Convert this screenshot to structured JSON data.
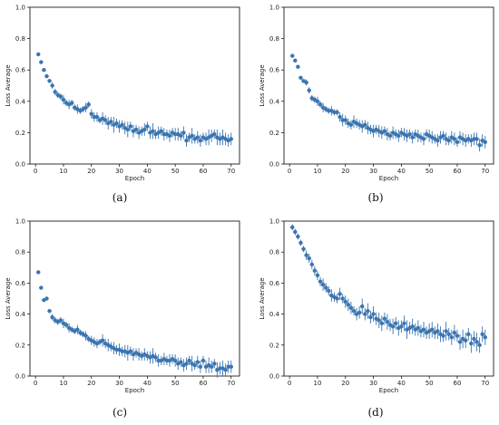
{
  "figure": {
    "marker_color": "#3a75b0",
    "errorbar_color": "#3a75b0"
  },
  "chart_data": [
    {
      "type": "scatter",
      "caption": "(a)",
      "xlabel": "Epoch",
      "ylabel": "Loss Average",
      "xlim": [
        -2,
        73
      ],
      "ylim": [
        0,
        1.0
      ],
      "xticks": [
        "0",
        "10",
        "20",
        "30",
        "40",
        "50",
        "60",
        "70"
      ],
      "yticks": [
        "0.0",
        "0.2",
        "0.4",
        "0.6",
        "0.8",
        "1.0"
      ],
      "grid": false,
      "series": [
        {
          "x": [
            1,
            2,
            3,
            4,
            5,
            6,
            7,
            8,
            9,
            10,
            11,
            12,
            13,
            14,
            15,
            16,
            17,
            18,
            19,
            20,
            21,
            22,
            23,
            24,
            25,
            26,
            27,
            28,
            29,
            30,
            31,
            32,
            33,
            34,
            35,
            36,
            37,
            38,
            39,
            40,
            41,
            42,
            43,
            44,
            45,
            46,
            47,
            48,
            49,
            50,
            51,
            52,
            53,
            54,
            55,
            56,
            57,
            58,
            59,
            60,
            61,
            62,
            63,
            64,
            65,
            66,
            67,
            68,
            69,
            70
          ],
          "y": [
            0.7,
            0.65,
            0.6,
            0.56,
            0.53,
            0.5,
            0.46,
            0.44,
            0.43,
            0.41,
            0.39,
            0.38,
            0.39,
            0.36,
            0.35,
            0.34,
            0.35,
            0.36,
            0.38,
            0.32,
            0.3,
            0.3,
            0.28,
            0.29,
            0.28,
            0.26,
            0.27,
            0.25,
            0.26,
            0.24,
            0.25,
            0.23,
            0.22,
            0.24,
            0.21,
            0.22,
            0.2,
            0.21,
            0.22,
            0.24,
            0.2,
            0.21,
            0.19,
            0.2,
            0.21,
            0.19,
            0.19,
            0.18,
            0.2,
            0.19,
            0.19,
            0.18,
            0.2,
            0.15,
            0.17,
            0.18,
            0.16,
            0.17,
            0.15,
            0.17,
            0.16,
            0.17,
            0.18,
            0.19,
            0.17,
            0.16,
            0.17,
            0.16,
            0.15,
            0.16
          ],
          "err": [
            0.01,
            0.01,
            0.01,
            0.01,
            0.01,
            0.02,
            0.02,
            0.02,
            0.02,
            0.03,
            0.02,
            0.03,
            0.02,
            0.02,
            0.03,
            0.02,
            0.02,
            0.03,
            0.02,
            0.03,
            0.03,
            0.03,
            0.02,
            0.04,
            0.03,
            0.04,
            0.03,
            0.05,
            0.03,
            0.04,
            0.03,
            0.04,
            0.05,
            0.03,
            0.04,
            0.03,
            0.04,
            0.03,
            0.04,
            0.03,
            0.04,
            0.05,
            0.03,
            0.04,
            0.03,
            0.04,
            0.03,
            0.04,
            0.03,
            0.04,
            0.04,
            0.03,
            0.04,
            0.04,
            0.03,
            0.05,
            0.03,
            0.04,
            0.04,
            0.03,
            0.04,
            0.05,
            0.04,
            0.03,
            0.05,
            0.04,
            0.05,
            0.04,
            0.04,
            0.04
          ]
        }
      ]
    },
    {
      "type": "scatter",
      "caption": "(b)",
      "xlabel": "Epoch",
      "ylabel": "Loss Average",
      "xlim": [
        -2,
        73
      ],
      "ylim": [
        0,
        1.0
      ],
      "xticks": [
        "0",
        "10",
        "20",
        "30",
        "40",
        "50",
        "60",
        "70"
      ],
      "yticks": [
        "0.0",
        "0.2",
        "0.4",
        "0.6",
        "0.8",
        "1.0"
      ],
      "grid": false,
      "series": [
        {
          "x": [
            1,
            2,
            3,
            4,
            5,
            6,
            7,
            8,
            9,
            10,
            11,
            12,
            13,
            14,
            15,
            16,
            17,
            18,
            19,
            20,
            21,
            22,
            23,
            24,
            25,
            26,
            27,
            28,
            29,
            30,
            31,
            32,
            33,
            34,
            35,
            36,
            37,
            38,
            39,
            40,
            41,
            42,
            43,
            44,
            45,
            46,
            47,
            48,
            49,
            50,
            51,
            52,
            53,
            54,
            55,
            56,
            57,
            58,
            59,
            60,
            61,
            62,
            63,
            64,
            65,
            66,
            67,
            68,
            69,
            70
          ],
          "y": [
            0.69,
            0.66,
            0.62,
            0.55,
            0.53,
            0.52,
            0.47,
            0.42,
            0.41,
            0.4,
            0.38,
            0.36,
            0.35,
            0.34,
            0.34,
            0.33,
            0.33,
            0.3,
            0.28,
            0.28,
            0.26,
            0.25,
            0.27,
            0.26,
            0.25,
            0.24,
            0.25,
            0.23,
            0.22,
            0.21,
            0.22,
            0.21,
            0.2,
            0.21,
            0.19,
            0.18,
            0.2,
            0.19,
            0.18,
            0.2,
            0.19,
            0.18,
            0.19,
            0.17,
            0.19,
            0.18,
            0.17,
            0.16,
            0.19,
            0.18,
            0.17,
            0.16,
            0.15,
            0.17,
            0.18,
            0.16,
            0.15,
            0.17,
            0.16,
            0.14,
            0.17,
            0.16,
            0.15,
            0.16,
            0.15,
            0.16,
            0.16,
            0.12,
            0.15,
            0.14
          ],
          "err": [
            0.01,
            0.01,
            0.01,
            0.01,
            0.01,
            0.02,
            0.02,
            0.02,
            0.02,
            0.03,
            0.02,
            0.03,
            0.02,
            0.02,
            0.03,
            0.02,
            0.02,
            0.03,
            0.04,
            0.03,
            0.03,
            0.03,
            0.04,
            0.03,
            0.03,
            0.04,
            0.03,
            0.04,
            0.03,
            0.04,
            0.03,
            0.04,
            0.04,
            0.03,
            0.04,
            0.03,
            0.04,
            0.03,
            0.04,
            0.03,
            0.04,
            0.04,
            0.03,
            0.04,
            0.03,
            0.04,
            0.03,
            0.04,
            0.03,
            0.04,
            0.04,
            0.03,
            0.04,
            0.04,
            0.03,
            0.04,
            0.03,
            0.04,
            0.04,
            0.03,
            0.04,
            0.04,
            0.04,
            0.03,
            0.04,
            0.04,
            0.04,
            0.04,
            0.04,
            0.04
          ]
        }
      ]
    },
    {
      "type": "scatter",
      "caption": "(c)",
      "xlabel": "Epoch",
      "ylabel": "Loss Average",
      "xlim": [
        -2,
        73
      ],
      "ylim": [
        0,
        1.0
      ],
      "xticks": [
        "0",
        "10",
        "20",
        "30",
        "40",
        "50",
        "60",
        "70"
      ],
      "yticks": [
        "0.0",
        "0.2",
        "0.4",
        "0.6",
        "0.8",
        "1.0"
      ],
      "grid": false,
      "series": [
        {
          "x": [
            1,
            2,
            3,
            4,
            5,
            6,
            7,
            8,
            9,
            10,
            11,
            12,
            13,
            14,
            15,
            16,
            17,
            18,
            19,
            20,
            21,
            22,
            23,
            24,
            25,
            26,
            27,
            28,
            29,
            30,
            31,
            32,
            33,
            34,
            35,
            36,
            37,
            38,
            39,
            40,
            41,
            42,
            43,
            44,
            45,
            46,
            47,
            48,
            49,
            50,
            51,
            52,
            53,
            54,
            55,
            56,
            57,
            58,
            59,
            60,
            61,
            62,
            63,
            64,
            65,
            66,
            67,
            68,
            69,
            70
          ],
          "y": [
            0.67,
            0.57,
            0.49,
            0.5,
            0.42,
            0.38,
            0.36,
            0.35,
            0.36,
            0.34,
            0.33,
            0.31,
            0.3,
            0.29,
            0.3,
            0.28,
            0.27,
            0.26,
            0.24,
            0.23,
            0.22,
            0.21,
            0.22,
            0.23,
            0.21,
            0.2,
            0.19,
            0.18,
            0.17,
            0.17,
            0.16,
            0.16,
            0.15,
            0.16,
            0.14,
            0.15,
            0.14,
            0.13,
            0.14,
            0.13,
            0.12,
            0.13,
            0.12,
            0.1,
            0.1,
            0.11,
            0.1,
            0.1,
            0.11,
            0.1,
            0.08,
            0.09,
            0.07,
            0.08,
            0.1,
            0.08,
            0.07,
            0.09,
            0.06,
            0.1,
            0.06,
            0.07,
            0.06,
            0.08,
            0.04,
            0.05,
            0.05,
            0.04,
            0.06,
            0.06
          ],
          "err": [
            0.01,
            0.01,
            0.01,
            0.01,
            0.01,
            0.02,
            0.02,
            0.02,
            0.02,
            0.03,
            0.02,
            0.03,
            0.02,
            0.02,
            0.03,
            0.02,
            0.02,
            0.03,
            0.02,
            0.03,
            0.03,
            0.03,
            0.02,
            0.04,
            0.03,
            0.04,
            0.03,
            0.04,
            0.03,
            0.04,
            0.03,
            0.04,
            0.05,
            0.03,
            0.04,
            0.03,
            0.04,
            0.03,
            0.04,
            0.03,
            0.04,
            0.05,
            0.03,
            0.04,
            0.03,
            0.04,
            0.03,
            0.04,
            0.03,
            0.04,
            0.04,
            0.03,
            0.04,
            0.04,
            0.03,
            0.05,
            0.03,
            0.04,
            0.04,
            0.03,
            0.04,
            0.05,
            0.04,
            0.03,
            0.05,
            0.04,
            0.05,
            0.04,
            0.04,
            0.04
          ]
        }
      ]
    },
    {
      "type": "scatter",
      "caption": "(d)",
      "xlabel": "Epoch",
      "ylabel": "Loss Average",
      "xlim": [
        -2,
        73
      ],
      "ylim": [
        0,
        1.0
      ],
      "xticks": [
        "0",
        "10",
        "20",
        "30",
        "40",
        "50",
        "60",
        "70"
      ],
      "yticks": [
        "0.0",
        "0.2",
        "0.4",
        "0.6",
        "0.8",
        "1.0"
      ],
      "grid": false,
      "series": [
        {
          "x": [
            1,
            2,
            3,
            4,
            5,
            6,
            7,
            8,
            9,
            10,
            11,
            12,
            13,
            14,
            15,
            16,
            17,
            18,
            19,
            20,
            21,
            22,
            23,
            24,
            25,
            26,
            27,
            28,
            29,
            30,
            31,
            32,
            33,
            34,
            35,
            36,
            37,
            38,
            39,
            40,
            41,
            42,
            43,
            44,
            45,
            46,
            47,
            48,
            49,
            50,
            51,
            52,
            53,
            54,
            55,
            56,
            57,
            58,
            59,
            60,
            61,
            62,
            63,
            64,
            65,
            66,
            67,
            68,
            69,
            70
          ],
          "y": [
            0.96,
            0.93,
            0.9,
            0.86,
            0.82,
            0.78,
            0.76,
            0.72,
            0.68,
            0.65,
            0.61,
            0.59,
            0.57,
            0.55,
            0.52,
            0.51,
            0.5,
            0.53,
            0.5,
            0.48,
            0.46,
            0.44,
            0.42,
            0.4,
            0.41,
            0.45,
            0.4,
            0.42,
            0.38,
            0.4,
            0.37,
            0.36,
            0.34,
            0.37,
            0.35,
            0.33,
            0.32,
            0.34,
            0.31,
            0.32,
            0.34,
            0.3,
            0.31,
            0.32,
            0.3,
            0.31,
            0.29,
            0.3,
            0.28,
            0.29,
            0.3,
            0.28,
            0.29,
            0.27,
            0.26,
            0.29,
            0.27,
            0.25,
            0.28,
            0.26,
            0.22,
            0.24,
            0.23,
            0.27,
            0.21,
            0.24,
            0.22,
            0.2,
            0.27,
            0.25
          ],
          "err": [
            0.02,
            0.02,
            0.02,
            0.02,
            0.02,
            0.03,
            0.03,
            0.03,
            0.03,
            0.03,
            0.03,
            0.04,
            0.03,
            0.03,
            0.04,
            0.03,
            0.03,
            0.04,
            0.03,
            0.04,
            0.04,
            0.04,
            0.03,
            0.04,
            0.04,
            0.05,
            0.04,
            0.05,
            0.04,
            0.05,
            0.04,
            0.05,
            0.05,
            0.04,
            0.05,
            0.04,
            0.05,
            0.04,
            0.05,
            0.04,
            0.05,
            0.06,
            0.04,
            0.05,
            0.04,
            0.05,
            0.04,
            0.05,
            0.04,
            0.05,
            0.05,
            0.04,
            0.05,
            0.05,
            0.04,
            0.06,
            0.04,
            0.05,
            0.05,
            0.04,
            0.05,
            0.06,
            0.05,
            0.04,
            0.06,
            0.05,
            0.06,
            0.05,
            0.05,
            0.05
          ]
        }
      ]
    }
  ]
}
